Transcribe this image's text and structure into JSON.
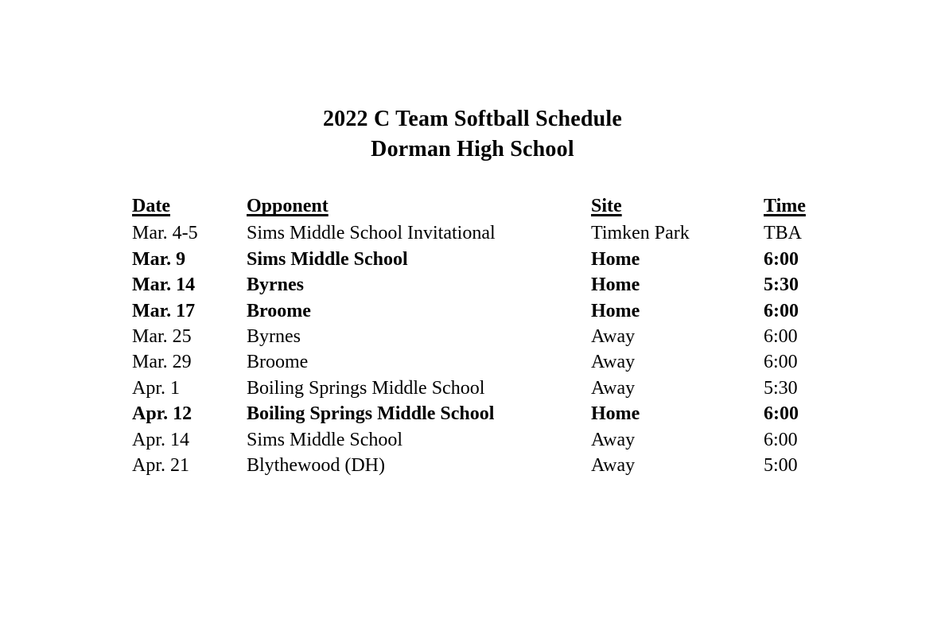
{
  "document": {
    "title": "2022 C Team Softball Schedule",
    "subtitle": "Dorman High School",
    "table": {
      "headers": {
        "date": "Date",
        "opponent": "Opponent",
        "site": "Site",
        "time": "Time"
      },
      "rows": [
        {
          "date": "Mar. 4-5",
          "opponent": "Sims Middle School Invitational",
          "site": "Timken Park",
          "time": "TBA",
          "bold": false
        },
        {
          "date": "Mar. 9",
          "opponent": "Sims Middle School",
          "site": "Home",
          "time": "6:00",
          "bold": true
        },
        {
          "date": "Mar. 14",
          "opponent": "Byrnes",
          "site": "Home",
          "time": "5:30",
          "bold": true
        },
        {
          "date": "Mar. 17",
          "opponent": "Broome",
          "site": "Home",
          "time": "6:00",
          "bold": true
        },
        {
          "date": "Mar. 25",
          "opponent": "Byrnes",
          "site": "Away",
          "time": "6:00",
          "bold": false
        },
        {
          "date": "Mar. 29",
          "opponent": "Broome",
          "site": "Away",
          "time": "6:00",
          "bold": false
        },
        {
          "date": "Apr. 1",
          "opponent": "Boiling Springs Middle School",
          "site": "Away",
          "time": "5:30",
          "bold": false
        },
        {
          "date": "Apr. 12",
          "opponent": "Boiling Springs Middle School",
          "site": "Home",
          "time": "6:00",
          "bold": true
        },
        {
          "date": "Apr. 14",
          "opponent": "Sims Middle School",
          "site": "Away",
          "time": "6:00",
          "bold": false
        },
        {
          "date": "Apr. 21",
          "opponent": "Blythewood (DH)",
          "site": "Away",
          "time": "5:00",
          "bold": false
        }
      ]
    },
    "colors": {
      "text": "#000000",
      "background": "#ffffff"
    }
  }
}
